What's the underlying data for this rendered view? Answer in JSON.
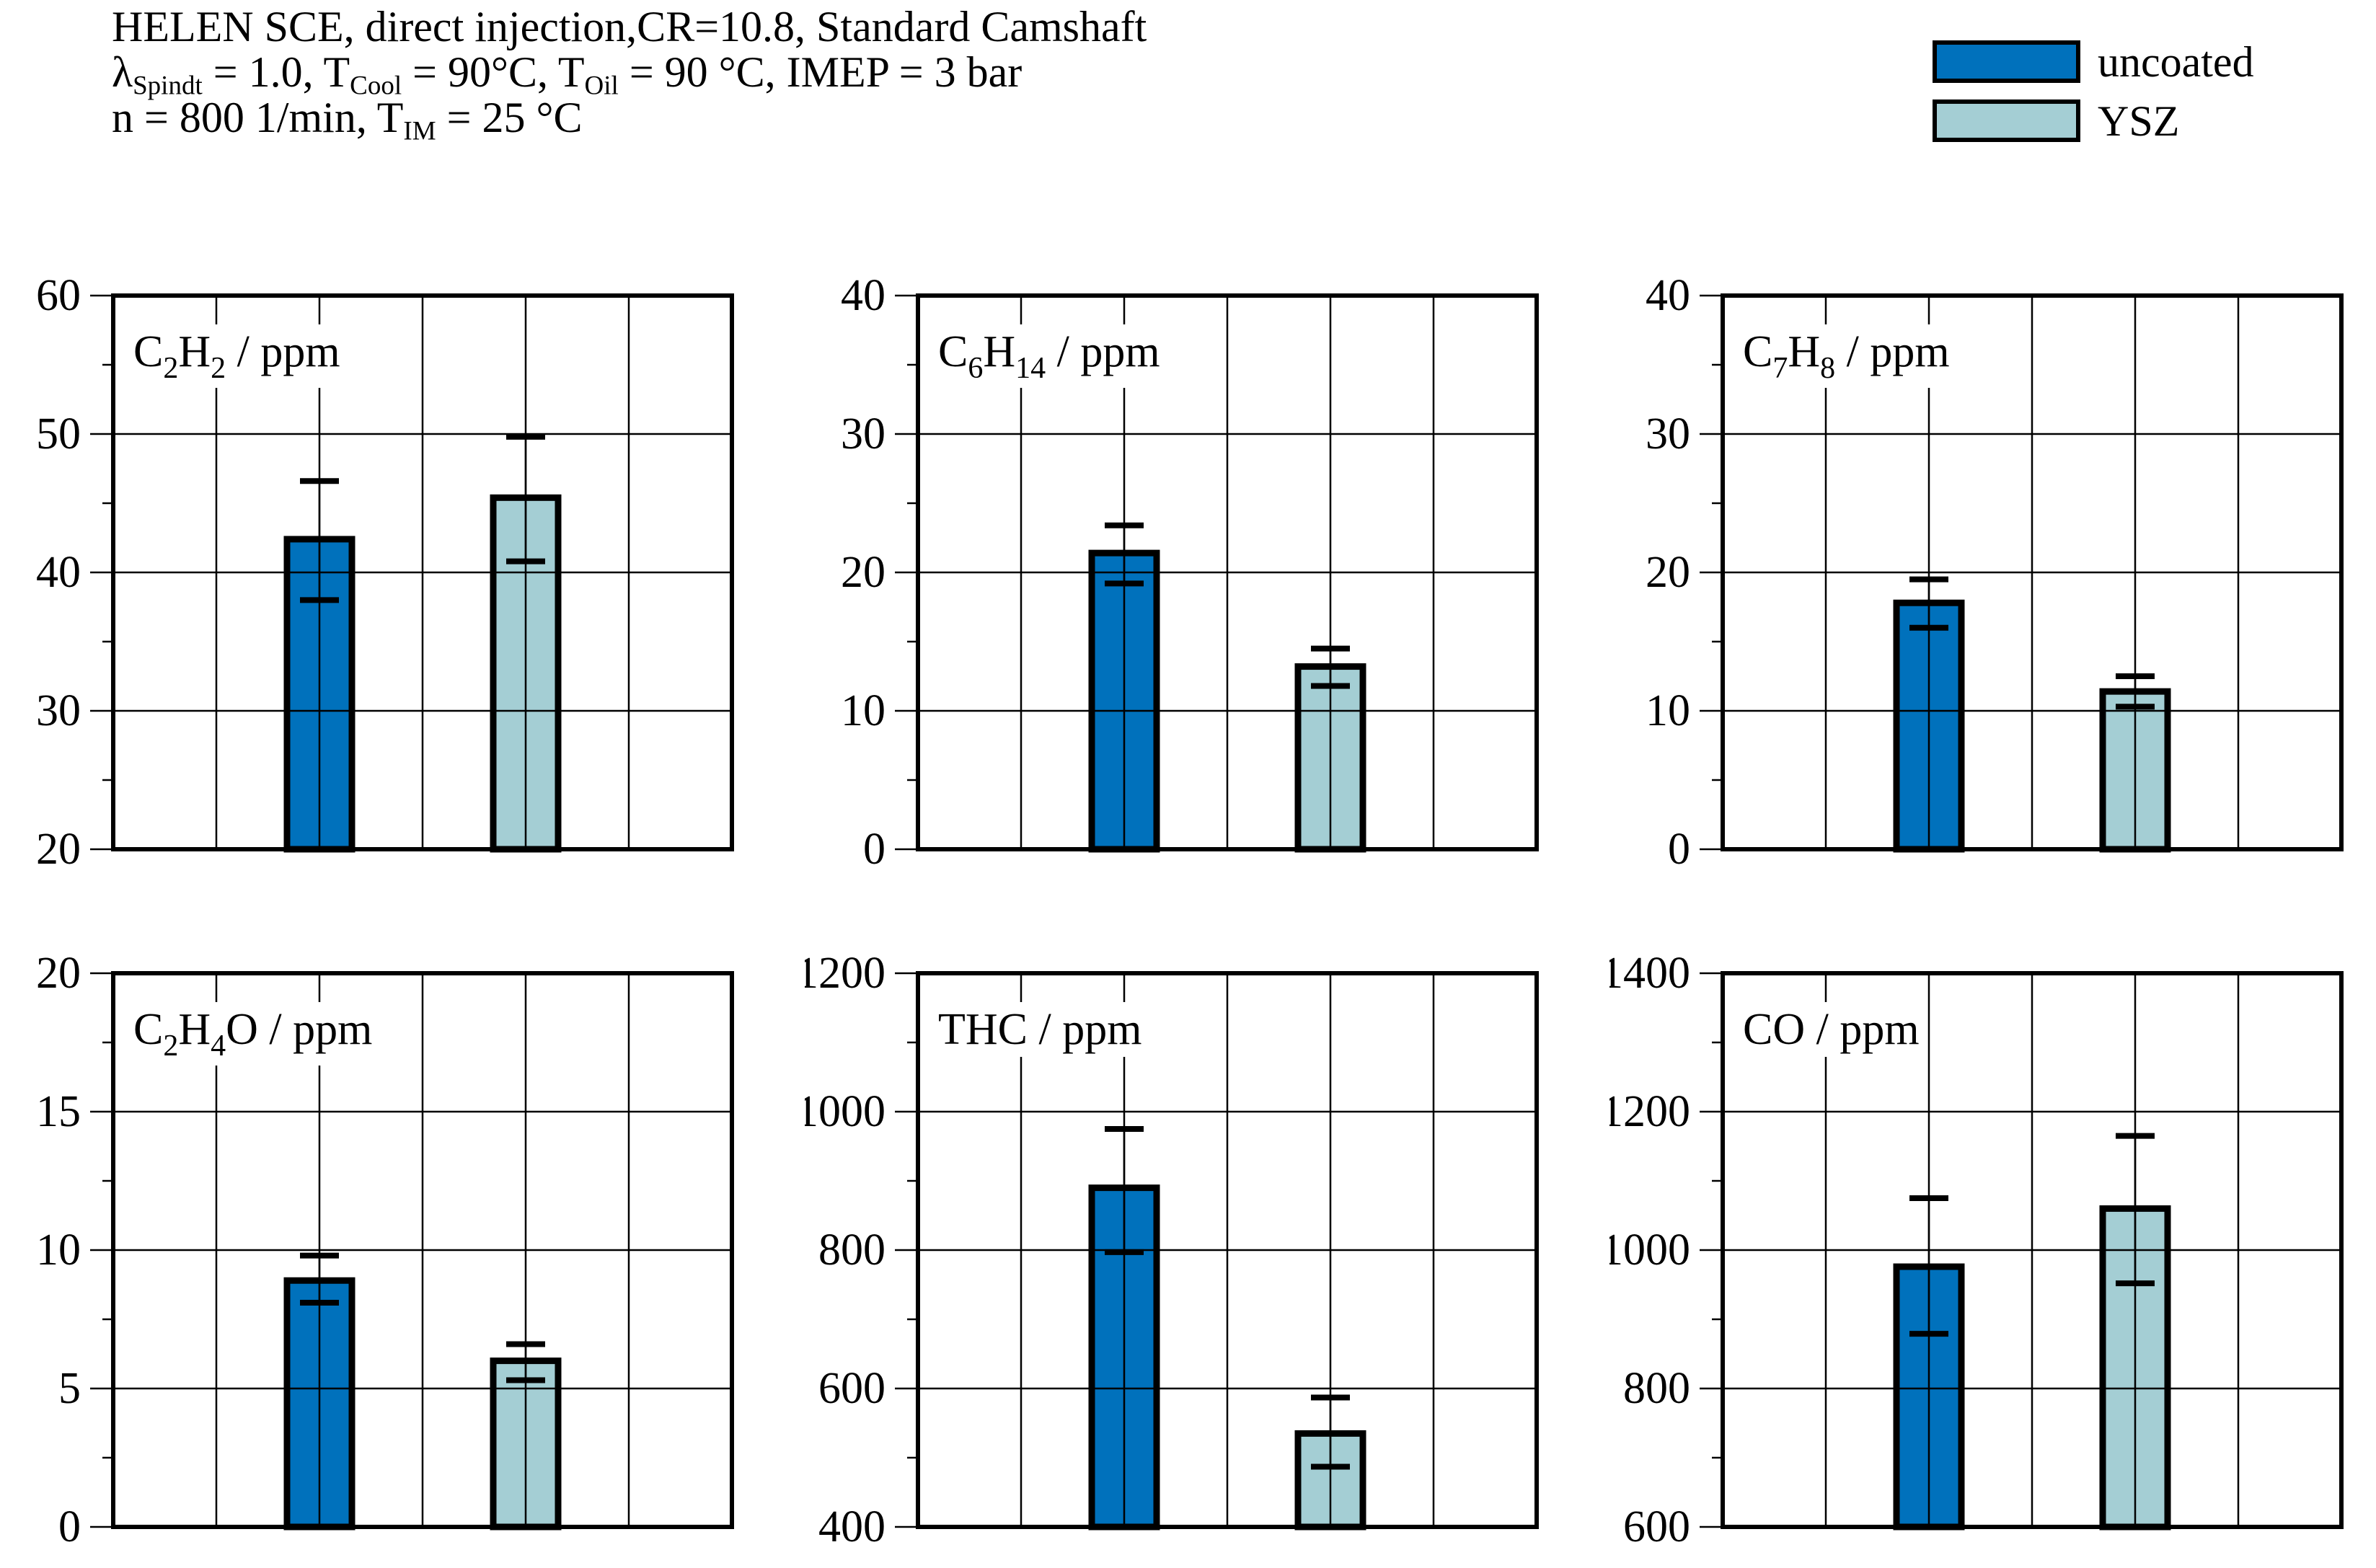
{
  "header": {
    "lines": [
      {
        "text": "HELEN SCE, direct injection,CR=10.8, Standard Camshaft",
        "parts": [
          {
            "t": "HELEN SCE, direct injection,CR=10.8, Standard Camshaft",
            "sub": false
          }
        ]
      },
      {
        "text": "λSpindt = 1.0, TCool = 90°C, TOil = 90 °C, IMEP = 3 bar",
        "parts": [
          {
            "t": "λ",
            "sub": false
          },
          {
            "t": "Spindt",
            "sub": true
          },
          {
            "t": " = 1.0, T",
            "sub": false
          },
          {
            "t": "Cool",
            "sub": true
          },
          {
            "t": " = 90°C, T",
            "sub": false
          },
          {
            "t": "Oil",
            "sub": true
          },
          {
            "t": " = 90 °C, IMEP = 3 bar",
            "sub": false
          }
        ]
      },
      {
        "text": "n = 800 1/min, TIM = 25 °C",
        "parts": [
          {
            "t": "n = 800 1/min, T",
            "sub": false
          },
          {
            "t": "IM",
            "sub": true
          },
          {
            "t": " = 25 °C",
            "sub": false
          }
        ]
      }
    ]
  },
  "legend": {
    "items": [
      {
        "label": "uncoated",
        "color": "#0071BC"
      },
      {
        "label": "YSZ",
        "color": "#A4CED4"
      }
    ]
  },
  "colors": {
    "uncoated": "#0071BC",
    "ysz": "#A4CED4",
    "line": "#000000",
    "background": "#FFFFFF"
  },
  "chart_data": [
    {
      "type": "bar",
      "id": "c2h2",
      "title": "C2H2 / ppm",
      "title_parts": [
        {
          "t": "C",
          "sub": false
        },
        {
          "t": "2",
          "sub": true
        },
        {
          "t": "H",
          "sub": false
        },
        {
          "t": "2",
          "sub": true
        },
        {
          "t": " / ppm",
          "sub": false
        }
      ],
      "ylim": [
        20,
        60
      ],
      "ytick_major": 10,
      "ytick_minor": 5,
      "grid": true,
      "categories": [
        "uncoated",
        "YSZ"
      ],
      "series": [
        {
          "name": "uncoated",
          "value": 42.4,
          "err_lo": 38.0,
          "err_hi": 46.6
        },
        {
          "name": "YSZ",
          "value": 45.4,
          "err_lo": 40.8,
          "err_hi": 49.8
        }
      ]
    },
    {
      "type": "bar",
      "id": "c6h14",
      "title": "C6H14 / ppm",
      "title_parts": [
        {
          "t": "C",
          "sub": false
        },
        {
          "t": "6",
          "sub": true
        },
        {
          "t": "H",
          "sub": false
        },
        {
          "t": "14",
          "sub": true
        },
        {
          "t": " / ppm",
          "sub": false
        }
      ],
      "ylim": [
        0,
        40
      ],
      "ytick_major": 10,
      "ytick_minor": 5,
      "grid": true,
      "categories": [
        "uncoated",
        "YSZ"
      ],
      "series": [
        {
          "name": "uncoated",
          "value": 21.4,
          "err_lo": 19.2,
          "err_hi": 23.4
        },
        {
          "name": "YSZ",
          "value": 13.2,
          "err_lo": 11.8,
          "err_hi": 14.5
        }
      ]
    },
    {
      "type": "bar",
      "id": "c7h8",
      "title": "C7H8 / ppm",
      "title_parts": [
        {
          "t": "C",
          "sub": false
        },
        {
          "t": "7",
          "sub": true
        },
        {
          "t": "H",
          "sub": false
        },
        {
          "t": "8",
          "sub": true
        },
        {
          "t": " / ppm",
          "sub": false
        }
      ],
      "ylim": [
        0,
        40
      ],
      "ytick_major": 10,
      "ytick_minor": 5,
      "grid": true,
      "categories": [
        "uncoated",
        "YSZ"
      ],
      "series": [
        {
          "name": "uncoated",
          "value": 17.8,
          "err_lo": 16.0,
          "err_hi": 19.5
        },
        {
          "name": "YSZ",
          "value": 11.4,
          "err_lo": 10.3,
          "err_hi": 12.5
        }
      ]
    },
    {
      "type": "bar",
      "id": "c2h4o",
      "title": "C2H4O / ppm",
      "title_parts": [
        {
          "t": "C",
          "sub": false
        },
        {
          "t": "2",
          "sub": true
        },
        {
          "t": "H",
          "sub": false
        },
        {
          "t": "4",
          "sub": true
        },
        {
          "t": "O / ppm",
          "sub": false
        }
      ],
      "ylim": [
        0,
        20
      ],
      "ytick_major": 5,
      "ytick_minor": 2.5,
      "grid": true,
      "categories": [
        "uncoated",
        "YSZ"
      ],
      "series": [
        {
          "name": "uncoated",
          "value": 8.9,
          "err_lo": 8.1,
          "err_hi": 9.8
        },
        {
          "name": "YSZ",
          "value": 6.0,
          "err_lo": 5.3,
          "err_hi": 6.6
        }
      ]
    },
    {
      "type": "bar",
      "id": "thc",
      "title": "THC / ppm",
      "title_parts": [
        {
          "t": "THC / ppm",
          "sub": false
        }
      ],
      "ylim": [
        400,
        1200
      ],
      "ytick_major": 200,
      "ytick_minor": 100,
      "grid": true,
      "categories": [
        "uncoated",
        "YSZ"
      ],
      "series": [
        {
          "name": "uncoated",
          "value": 890,
          "err_lo": 797,
          "err_hi": 975
        },
        {
          "name": "YSZ",
          "value": 535,
          "err_lo": 487,
          "err_hi": 587
        }
      ]
    },
    {
      "type": "bar",
      "id": "co",
      "title": "CO / ppm",
      "title_parts": [
        {
          "t": "CO / ppm",
          "sub": false
        }
      ],
      "ylim": [
        600,
        1400
      ],
      "ytick_major": 200,
      "ytick_minor": 100,
      "grid": true,
      "categories": [
        "uncoated",
        "YSZ"
      ],
      "series": [
        {
          "name": "uncoated",
          "value": 976,
          "err_lo": 879,
          "err_hi": 1075
        },
        {
          "name": "YSZ",
          "value": 1060,
          "err_lo": 952,
          "err_hi": 1165
        }
      ]
    }
  ]
}
